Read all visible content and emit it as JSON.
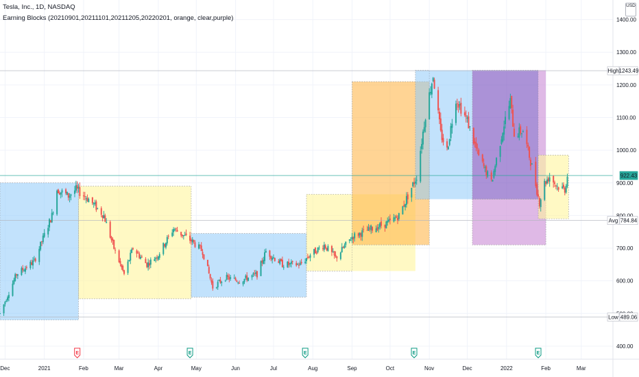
{
  "header": {
    "title": "Tesla, Inc., 1D, NASDAQ",
    "indicator": "Earning Blocks (20210901,20211101,20211205,20220201, orange, clear,purple)",
    "currency": "USD"
  },
  "colors": {
    "up": "#26a69a",
    "down": "#ef5350",
    "blue_block": "#90caf9",
    "yellow_block": "#fff59d",
    "orange_block": "#ffb74d",
    "purple_block": "#7e57c2",
    "violet_block": "#ce93d8",
    "earnings_green": "#089981",
    "earnings_red": "#f23645",
    "current_price": "#26a69a"
  },
  "icons": {
    "earnings": "earnings-e-icon"
  },
  "price_tags": {
    "high": {
      "label": "High",
      "value": "1243.49"
    },
    "current": {
      "label": "",
      "value": "922.43"
    },
    "avg": {
      "label": "Avg",
      "value": "784.84"
    },
    "low": {
      "label": "Low",
      "value": "489.06"
    }
  },
  "chart_data": {
    "type": "candlestick",
    "title": "Tesla, Inc., 1D, NASDAQ",
    "y_ticks": [
      400,
      500,
      600,
      700,
      800,
      900,
      1000,
      1100,
      1200,
      1300,
      1400
    ],
    "y_tick_labels": [
      "400.00",
      "500.00",
      "600.00",
      "700.00",
      "800.00",
      "900.00",
      "1000.00",
      "1100.00",
      "1200.00",
      "1300.00",
      "1400.00"
    ],
    "ylim": [
      360,
      1460
    ],
    "x_labels": [
      {
        "label": "Dec",
        "date": "2020-12-01"
      },
      {
        "label": "2021",
        "date": "2021-01-01"
      },
      {
        "label": "Feb",
        "date": "2021-02-01"
      },
      {
        "label": "Mar",
        "date": "2021-03-01"
      },
      {
        "label": "Apr",
        "date": "2021-04-01"
      },
      {
        "label": "May",
        "date": "2021-05-01"
      },
      {
        "label": "Jun",
        "date": "2021-06-01"
      },
      {
        "label": "Jul",
        "date": "2021-07-01"
      },
      {
        "label": "Aug",
        "date": "2021-08-01"
      },
      {
        "label": "Sep",
        "date": "2021-09-01"
      },
      {
        "label": "Oct",
        "date": "2021-10-01"
      },
      {
        "label": "Nov",
        "date": "2021-11-01"
      },
      {
        "label": "Dec",
        "date": "2021-12-01"
      },
      {
        "label": "2022",
        "date": "2022-01-01"
      },
      {
        "label": "Feb",
        "date": "2022-02-01"
      },
      {
        "label": "Mar",
        "date": "2022-03-01"
      }
    ],
    "xlim": [
      "2020-11-27",
      "2022-03-26"
    ],
    "close_path": [
      [
        "2020-11-27",
        500
      ],
      [
        "2020-12-10",
        620
      ],
      [
        "2020-12-24",
        660
      ],
      [
        "2021-01-07",
        800
      ],
      [
        "2021-01-11",
        880
      ],
      [
        "2021-01-20",
        860
      ],
      [
        "2021-01-26",
        880
      ],
      [
        "2021-02-05",
        850
      ],
      [
        "2021-02-17",
        800
      ],
      [
        "2021-02-25",
        700
      ],
      [
        "2021-03-05",
        620
      ],
      [
        "2021-03-12",
        700
      ],
      [
        "2021-03-23",
        650
      ],
      [
        "2021-04-01",
        680
      ],
      [
        "2021-04-13",
        760
      ],
      [
        "2021-04-28",
        720
      ],
      [
        "2021-05-06",
        690
      ],
      [
        "2021-05-14",
        580
      ],
      [
        "2021-05-24",
        610
      ],
      [
        "2021-06-04",
        600
      ],
      [
        "2021-06-18",
        620
      ],
      [
        "2021-06-25",
        690
      ],
      [
        "2021-07-08",
        650
      ],
      [
        "2021-07-22",
        650
      ],
      [
        "2021-07-30",
        680
      ],
      [
        "2021-08-10",
        710
      ],
      [
        "2021-08-19",
        670
      ],
      [
        "2021-09-01",
        735
      ],
      [
        "2021-09-17",
        760
      ],
      [
        "2021-10-01",
        780
      ],
      [
        "2021-10-08",
        800
      ],
      [
        "2021-10-15",
        860
      ],
      [
        "2021-10-22",
        920
      ],
      [
        "2021-10-29",
        1110
      ],
      [
        "2021-11-04",
        1230
      ],
      [
        "2021-11-10",
        1050
      ],
      [
        "2021-11-15",
        1000
      ],
      [
        "2021-11-22",
        1160
      ],
      [
        "2021-12-01",
        1090
      ],
      [
        "2021-12-10",
        980
      ],
      [
        "2021-12-20",
        900
      ],
      [
        "2021-12-30",
        1080
      ],
      [
        "2022-01-04",
        1150
      ],
      [
        "2022-01-07",
        1050
      ],
      [
        "2022-01-14",
        1060
      ],
      [
        "2022-01-21",
        950
      ],
      [
        "2022-01-27",
        840
      ],
      [
        "2022-01-31",
        900
      ],
      [
        "2022-02-04",
        920
      ],
      [
        "2022-02-10",
        890
      ],
      [
        "2022-02-16",
        880
      ],
      [
        "2022-02-18",
        922
      ]
    ],
    "earnings_blocks": [
      {
        "start": "2020-11-27",
        "end": "2021-01-28",
        "low": 480,
        "high": 900,
        "color": "blue"
      },
      {
        "start": "2021-01-28",
        "end": "2021-04-27",
        "low": 545,
        "high": 890,
        "color": "yellow"
      },
      {
        "start": "2021-04-27",
        "end": "2021-07-27",
        "low": 550,
        "high": 745,
        "color": "blue"
      },
      {
        "start": "2021-07-27",
        "end": "2021-09-01",
        "low": 630,
        "high": 865,
        "color": "yellow"
      },
      {
        "start": "2021-09-01",
        "end": "2021-10-21",
        "low": 630,
        "high": 865,
        "color": "yellow",
        "dashed_border": false
      },
      {
        "start": "2021-09-01",
        "end": "2021-11-01",
        "low": 710,
        "high": 1210,
        "color": "orange"
      },
      {
        "start": "2021-10-21",
        "end": "2021-11-01",
        "low": 850,
        "high": 1245,
        "color": "blue"
      },
      {
        "start": "2021-11-01",
        "end": "2021-12-05",
        "low": 850,
        "high": 1245,
        "color": "blue",
        "dashed_border": false
      },
      {
        "start": "2021-12-05",
        "end": "2022-01-26",
        "low": 850,
        "high": 1245,
        "color": "purple"
      },
      {
        "start": "2022-01-26",
        "end": "2022-02-01",
        "low": 850,
        "high": 1245,
        "color": "violet",
        "dashed_border": false
      },
      {
        "start": "2021-12-05",
        "end": "2022-02-01",
        "low": 710,
        "high": 850,
        "color": "violet"
      },
      {
        "start": "2022-01-26",
        "end": "2022-02-19",
        "low": 790,
        "high": 985,
        "color": "yellow"
      }
    ],
    "earnings_markers": [
      {
        "date": "2021-01-27",
        "type": "reported-miss"
      },
      {
        "date": "2021-04-26",
        "type": "reported-beat"
      },
      {
        "date": "2021-07-26",
        "type": "reported-beat"
      },
      {
        "date": "2021-10-20",
        "type": "reported-beat"
      },
      {
        "date": "2022-01-26",
        "type": "reported-beat"
      }
    ],
    "grid": true
  }
}
